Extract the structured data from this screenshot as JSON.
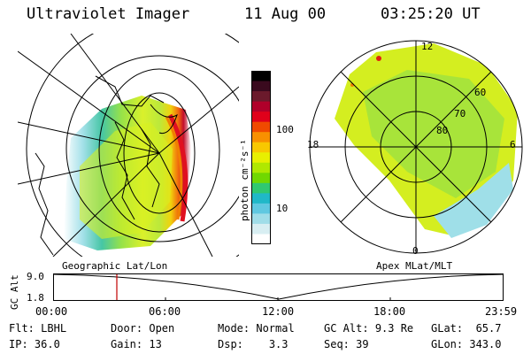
{
  "header": {
    "instrument": "Ultraviolet Imager",
    "date": "11 Aug 00",
    "time": "03:25:20 UT"
  },
  "colorbar": {
    "unit": "photon cm⁻²s⁻¹",
    "ticks": [
      "100",
      "10"
    ],
    "colors": [
      "#000000",
      "#3a0a1e",
      "#6b1a2c",
      "#b0002a",
      "#e0001a",
      "#f04a00",
      "#f89000",
      "#f8c800",
      "#e8f000",
      "#b0e800",
      "#70d800",
      "#30c870",
      "#20b8c8",
      "#60c8e0",
      "#a0dde8",
      "#d8eef2",
      "#ffffff"
    ]
  },
  "polar": {
    "lat_labels": [
      "60",
      "70",
      "80"
    ],
    "mlt_labels": {
      "top": "12",
      "left": "18",
      "right": "6",
      "bottom": "0"
    }
  },
  "panel_labels": {
    "geographic": "Geographic Lat/Lon",
    "apex": "Apex  MLat/MLT"
  },
  "altitude_plot": {
    "axis_label": "GC Alt",
    "y_ticks": [
      "9.0",
      "1.8"
    ],
    "x_ticks": [
      "00:00",
      "06:00",
      "12:00",
      "18:00",
      "23:59"
    ]
  },
  "footer": {
    "row1": [
      {
        "label": "Flt:",
        "value": "LBHL"
      },
      {
        "label": "Door:",
        "value": "Open"
      },
      {
        "label": "Mode:",
        "value": "Normal"
      },
      {
        "label": "GC Alt:",
        "value": "9.3 Re"
      },
      {
        "label": "GLat:",
        "value": "65.7"
      }
    ],
    "row2": [
      {
        "label": "IP:",
        "value": "36.0"
      },
      {
        "label": "Gain:",
        "value": "13"
      },
      {
        "label": "Dsp:",
        "value": "3.3"
      },
      {
        "label": "Seq:",
        "value": "39"
      },
      {
        "label": "GLon:",
        "value": "343.0"
      }
    ]
  }
}
